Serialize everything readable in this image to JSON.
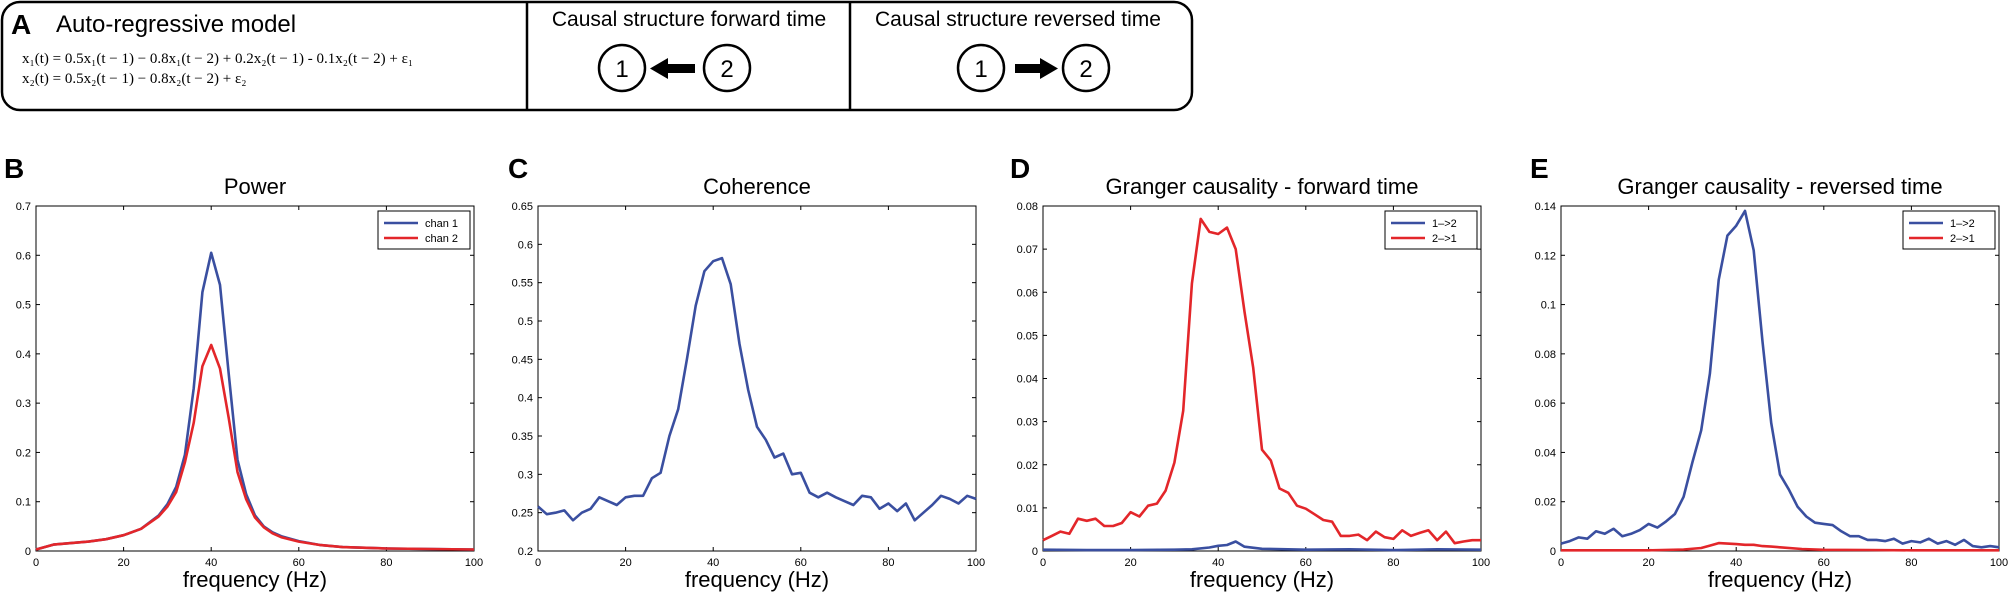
{
  "panel_a": {
    "letter": "A",
    "title": "Auto-regressive model",
    "eq1": "x₁(t) = 0.5x₁(t − 1) − 0.8x₁(t − 2) + 0.2x₂(t − 1) - 0.1x₂(t − 2) + ε₁",
    "eq2": "x₂(t) = 0.5x₂(t − 1) − 0.8x₂(t − 2) + ε₂",
    "forward_title": "Causal structure forward time",
    "reversed_title": "Causal structure reversed time",
    "node1": "1",
    "node2": "2"
  },
  "colors": {
    "blue": "#3a4fa0",
    "red": "#e3262a",
    "axis": "#000000"
  },
  "chart_data": [
    {
      "letter": "B",
      "type": "line",
      "title": "Power",
      "xlabel": "frequency (Hz)",
      "ylabel": "",
      "xlim": [
        0,
        100
      ],
      "ylim": [
        0,
        0.7
      ],
      "xticks": [
        0,
        20,
        40,
        60,
        80,
        100
      ],
      "yticks": [
        0,
        0.1,
        0.2,
        0.3,
        0.4,
        0.5,
        0.6,
        0.7
      ],
      "ytick_labels": [
        "0",
        "0.1",
        "0.2",
        "0.3",
        "0.4",
        "0.5",
        "0.6",
        "0.7"
      ],
      "legend": "top-right",
      "series": [
        {
          "name": "chan 1",
          "color": "blue",
          "x": [
            0,
            4,
            8,
            12,
            16,
            20,
            24,
            28,
            30,
            32,
            34,
            36,
            38,
            40,
            42,
            44,
            46,
            48,
            50,
            52,
            54,
            56,
            60,
            65,
            70,
            80,
            90,
            100
          ],
          "y": [
            0.003,
            0.013,
            0.016,
            0.019,
            0.024,
            0.032,
            0.045,
            0.072,
            0.095,
            0.13,
            0.195,
            0.33,
            0.525,
            0.605,
            0.54,
            0.36,
            0.185,
            0.115,
            0.072,
            0.05,
            0.038,
            0.03,
            0.02,
            0.012,
            0.008,
            0.005,
            0.004,
            0.003
          ]
        },
        {
          "name": "chan 2",
          "color": "red",
          "x": [
            0,
            4,
            8,
            12,
            16,
            20,
            24,
            28,
            30,
            32,
            34,
            36,
            38,
            40,
            42,
            44,
            46,
            48,
            50,
            52,
            54,
            56,
            60,
            65,
            70,
            80,
            90,
            100
          ],
          "y": [
            0.003,
            0.013,
            0.016,
            0.019,
            0.024,
            0.032,
            0.045,
            0.07,
            0.09,
            0.12,
            0.18,
            0.26,
            0.375,
            0.418,
            0.37,
            0.27,
            0.16,
            0.105,
            0.068,
            0.048,
            0.036,
            0.028,
            0.019,
            0.012,
            0.008,
            0.005,
            0.004,
            0.003
          ]
        }
      ]
    },
    {
      "letter": "C",
      "type": "line",
      "title": "Coherence",
      "xlabel": "frequency (Hz)",
      "ylabel": "",
      "xlim": [
        0,
        100
      ],
      "ylim": [
        0.2,
        0.65
      ],
      "xticks": [
        0,
        20,
        40,
        60,
        80,
        100
      ],
      "yticks": [
        0.2,
        0.25,
        0.3,
        0.35,
        0.4,
        0.45,
        0.5,
        0.55,
        0.6,
        0.65
      ],
      "ytick_labels": [
        "0.2",
        "0.25",
        "0.3",
        "0.35",
        "0.4",
        "0.45",
        "0.5",
        "0.55",
        "0.6",
        "0.65"
      ],
      "legend": "none",
      "series": [
        {
          "name": "coherence",
          "color": "blue",
          "x": [
            0,
            2,
            4,
            6,
            8,
            10,
            12,
            14,
            16,
            18,
            20,
            22,
            24,
            26,
            28,
            30,
            32,
            34,
            36,
            38,
            40,
            42,
            44,
            46,
            48,
            50,
            52,
            54,
            56,
            58,
            60,
            62,
            64,
            66,
            68,
            70,
            72,
            74,
            76,
            78,
            80,
            82,
            84,
            86,
            88,
            90,
            92,
            94,
            96,
            98,
            100
          ],
          "y": [
            0.258,
            0.248,
            0.25,
            0.253,
            0.24,
            0.25,
            0.255,
            0.27,
            0.265,
            0.26,
            0.27,
            0.272,
            0.272,
            0.295,
            0.302,
            0.35,
            0.385,
            0.45,
            0.52,
            0.565,
            0.578,
            0.582,
            0.548,
            0.47,
            0.41,
            0.362,
            0.345,
            0.322,
            0.327,
            0.3,
            0.302,
            0.276,
            0.27,
            0.276,
            0.27,
            0.265,
            0.26,
            0.272,
            0.27,
            0.255,
            0.262,
            0.252,
            0.262,
            0.24,
            0.25,
            0.26,
            0.272,
            0.268,
            0.262,
            0.272,
            0.268
          ]
        }
      ]
    },
    {
      "letter": "D",
      "type": "line",
      "title": "Granger causality - forward time",
      "xlabel": "frequency (Hz)",
      "ylabel": "",
      "xlim": [
        0,
        100
      ],
      "ylim": [
        0,
        0.08
      ],
      "xticks": [
        0,
        20,
        40,
        60,
        80,
        100
      ],
      "yticks": [
        0,
        0.01,
        0.02,
        0.03,
        0.04,
        0.05,
        0.06,
        0.07,
        0.08
      ],
      "ytick_labels": [
        "0",
        "0.01",
        "0.02",
        "0.03",
        "0.04",
        "0.05",
        "0.06",
        "0.07",
        "0.08"
      ],
      "legend": "top-right",
      "series": [
        {
          "name": "1–>2",
          "color": "blue",
          "x": [
            0,
            10,
            20,
            30,
            34,
            38,
            40,
            42,
            44,
            46,
            50,
            60,
            70,
            80,
            90,
            100
          ],
          "y": [
            0.0003,
            0.0002,
            0.0002,
            0.0003,
            0.0004,
            0.0008,
            0.0012,
            0.0014,
            0.0022,
            0.001,
            0.0005,
            0.0003,
            0.0004,
            0.0002,
            0.0004,
            0.0003
          ]
        },
        {
          "name": "2–>1",
          "color": "red",
          "x": [
            0,
            2,
            4,
            6,
            8,
            10,
            12,
            14,
            16,
            18,
            20,
            22,
            24,
            26,
            28,
            30,
            32,
            34,
            36,
            38,
            40,
            42,
            44,
            46,
            48,
            50,
            52,
            54,
            56,
            58,
            60,
            62,
            64,
            66,
            68,
            70,
            72,
            74,
            76,
            78,
            80,
            82,
            84,
            86,
            88,
            90,
            92,
            94,
            96,
            98,
            100
          ],
          "y": [
            0.0025,
            0.0035,
            0.0045,
            0.004,
            0.0075,
            0.007,
            0.0075,
            0.0058,
            0.0058,
            0.0065,
            0.009,
            0.008,
            0.0105,
            0.011,
            0.014,
            0.0205,
            0.0325,
            0.062,
            0.077,
            0.074,
            0.0735,
            0.075,
            0.07,
            0.0555,
            0.0425,
            0.0235,
            0.021,
            0.0145,
            0.0135,
            0.0105,
            0.0098,
            0.0085,
            0.0072,
            0.0068,
            0.0035,
            0.0035,
            0.0038,
            0.0025,
            0.0045,
            0.0032,
            0.0028,
            0.0048,
            0.0035,
            0.0042,
            0.0048,
            0.0025,
            0.0045,
            0.0018,
            0.0022,
            0.0025,
            0.0025
          ]
        }
      ]
    },
    {
      "letter": "E",
      "type": "line",
      "title": "Granger causality - reversed time",
      "xlabel": "frequency (Hz)",
      "ylabel": "",
      "xlim": [
        0,
        100
      ],
      "ylim": [
        0,
        0.14
      ],
      "xticks": [
        0,
        20,
        40,
        60,
        80,
        100
      ],
      "yticks": [
        0,
        0.02,
        0.04,
        0.06,
        0.08,
        0.1,
        0.12,
        0.14
      ],
      "ytick_labels": [
        "0",
        "0.02",
        "0.04",
        "0.06",
        "0.08",
        "0.1",
        "0.12",
        "0.14"
      ],
      "legend": "top-right",
      "series": [
        {
          "name": "1–>2",
          "color": "blue",
          "x": [
            0,
            2,
            4,
            6,
            8,
            10,
            12,
            14,
            16,
            18,
            20,
            22,
            24,
            26,
            28,
            30,
            32,
            34,
            36,
            38,
            40,
            42,
            44,
            46,
            48,
            50,
            52,
            54,
            56,
            58,
            60,
            62,
            64,
            66,
            68,
            70,
            72,
            74,
            76,
            78,
            80,
            82,
            84,
            86,
            88,
            90,
            92,
            94,
            96,
            98,
            100
          ],
          "y": [
            0.003,
            0.004,
            0.0055,
            0.005,
            0.008,
            0.007,
            0.009,
            0.006,
            0.007,
            0.0085,
            0.011,
            0.0095,
            0.012,
            0.015,
            0.022,
            0.036,
            0.049,
            0.072,
            0.11,
            0.128,
            0.132,
            0.138,
            0.122,
            0.085,
            0.052,
            0.031,
            0.025,
            0.018,
            0.014,
            0.0115,
            0.011,
            0.0105,
            0.008,
            0.006,
            0.006,
            0.0045,
            0.0045,
            0.004,
            0.005,
            0.003,
            0.004,
            0.0035,
            0.005,
            0.003,
            0.004,
            0.0025,
            0.0045,
            0.002,
            0.0015,
            0.002,
            0.0015
          ]
        },
        {
          "name": "2–>1",
          "color": "red",
          "x": [
            0,
            10,
            20,
            28,
            32,
            34,
            36,
            38,
            40,
            42,
            44,
            46,
            48,
            50,
            55,
            60,
            70,
            80,
            90,
            100
          ],
          "y": [
            0.0003,
            0.0003,
            0.0003,
            0.0006,
            0.0012,
            0.0022,
            0.0032,
            0.003,
            0.0028,
            0.0025,
            0.0025,
            0.002,
            0.0018,
            0.0015,
            0.0008,
            0.0005,
            0.0004,
            0.0003,
            0.0003,
            0.0003
          ]
        }
      ]
    }
  ]
}
